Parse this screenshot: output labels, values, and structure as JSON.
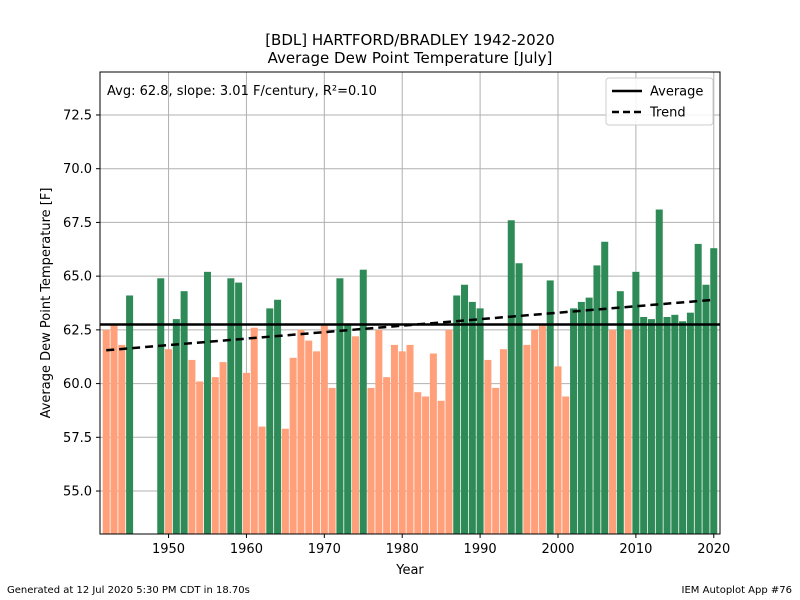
{
  "chart_data": {
    "type": "bar",
    "title": "[BDL] HARTFORD/BRADLEY 1942-2020",
    "subtitle": "Average Dew Point Temperature [July]",
    "xlabel": "Year",
    "ylabel": "Average Dew Point Temperature [F]",
    "annotation": "Avg: 62.8, slope: 3.01 F/century, R²=0.10",
    "xlim": [
      1941.2,
      2020.8
    ],
    "ylim": [
      53.0,
      74.5
    ],
    "xticks": [
      "1950",
      "1960",
      "1970",
      "1980",
      "1990",
      "2000",
      "2010",
      "2020"
    ],
    "yticks": [
      "55.0",
      "57.5",
      "60.0",
      "62.5",
      "65.0",
      "67.5",
      "70.0",
      "72.5"
    ],
    "grid": true,
    "legend": {
      "placement": "top-right",
      "entries": [
        "Average",
        "Trend"
      ]
    },
    "average": 62.75,
    "trend": {
      "start": [
        1942,
        61.55
      ],
      "end": [
        2020,
        63.9
      ]
    },
    "colors": {
      "above": "#2e8b57",
      "below": "#ffa07a",
      "average": "#000000",
      "trend": "#000000",
      "grid": "#b0b0b0"
    },
    "x": [
      1942,
      1943,
      1944,
      1945,
      1949,
      1950,
      1951,
      1952,
      1953,
      1954,
      1955,
      1956,
      1957,
      1958,
      1959,
      1960,
      1961,
      1962,
      1963,
      1964,
      1965,
      1966,
      1967,
      1968,
      1969,
      1970,
      1971,
      1972,
      1973,
      1974,
      1975,
      1976,
      1977,
      1978,
      1979,
      1980,
      1981,
      1982,
      1983,
      1984,
      1985,
      1986,
      1987,
      1988,
      1989,
      1990,
      1991,
      1992,
      1993,
      1994,
      1995,
      1996,
      1997,
      1998,
      1999,
      2000,
      2001,
      2002,
      2003,
      2004,
      2005,
      2006,
      2007,
      2008,
      2009,
      2010,
      2011,
      2012,
      2013,
      2014,
      2015,
      2016,
      2017,
      2018,
      2019,
      2020
    ],
    "values": [
      62.5,
      62.7,
      61.8,
      64.1,
      64.9,
      61.6,
      63.0,
      64.3,
      61.1,
      60.1,
      65.2,
      60.3,
      61.0,
      64.9,
      64.7,
      60.5,
      62.6,
      58.0,
      63.5,
      63.9,
      57.9,
      61.2,
      62.5,
      62.0,
      61.5,
      62.7,
      59.8,
      64.9,
      62.8,
      62.2,
      65.3,
      59.8,
      62.5,
      60.3,
      61.8,
      61.5,
      61.8,
      59.6,
      59.4,
      61.4,
      59.2,
      62.5,
      64.1,
      64.6,
      63.8,
      63.5,
      61.1,
      59.8,
      61.6,
      67.6,
      65.6,
      61.8,
      62.5,
      62.7,
      64.8,
      60.8,
      59.4,
      63.5,
      63.8,
      64.0,
      65.5,
      66.6,
      62.5,
      64.3,
      62.5,
      65.2,
      63.1,
      63.0,
      68.1,
      63.1,
      63.2,
      62.9,
      63.3,
      66.5,
      64.6,
      66.3
    ]
  },
  "footer": {
    "left": "Generated at 12 Jul 2020 5:30 PM CDT in 18.70s",
    "right": "IEM Autoplot App #76"
  }
}
